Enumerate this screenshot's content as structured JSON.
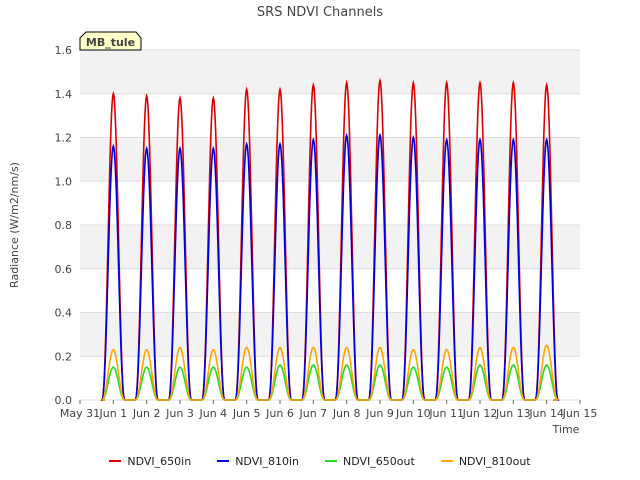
{
  "chart_data": {
    "type": "line",
    "title": "SRS NDVI Channels",
    "xlabel": "Time",
    "ylabel": "Radiance (W/m2/nm/s)",
    "ylim": [
      0.0,
      1.6
    ],
    "yticks": [
      "0.0",
      "0.2",
      "0.4",
      "0.6",
      "0.8",
      "1.0",
      "1.2",
      "1.4",
      "1.6"
    ],
    "xticks": [
      "May 31",
      "Jun 1",
      "Jun 2",
      "Jun 3",
      "Jun 4",
      "Jun 5",
      "Jun 6",
      "Jun 7",
      "Jun 8",
      "Jun 9",
      "Jun 10",
      "Jun 11",
      "Jun 12",
      "Jun 13",
      "Jun 14",
      "Jun 15"
    ],
    "grid": true,
    "legend_position": "bottom",
    "annotation": "MB_tule",
    "day_labels": [
      "Jun 1",
      "Jun 2",
      "Jun 3",
      "Jun 4",
      "Jun 5",
      "Jun 6",
      "Jun 7",
      "Jun 8",
      "Jun 9",
      "Jun 10",
      "Jun 11",
      "Jun 12",
      "Jun 13",
      "Jun 14"
    ],
    "series": [
      {
        "name": "NDVI_650in",
        "color": "#dd0000",
        "daily_peaks": [
          1.4,
          1.39,
          1.38,
          1.38,
          1.42,
          1.42,
          1.44,
          1.45,
          1.46,
          1.45,
          1.45,
          1.45,
          1.45,
          1.44
        ]
      },
      {
        "name": "NDVI_810in",
        "color": "#0000dd",
        "daily_peaks": [
          1.16,
          1.15,
          1.15,
          1.15,
          1.17,
          1.17,
          1.19,
          1.21,
          1.21,
          1.2,
          1.19,
          1.19,
          1.19,
          1.19
        ]
      },
      {
        "name": "NDVI_650out",
        "color": "#22dd22",
        "daily_peaks": [
          0.15,
          0.15,
          0.15,
          0.15,
          0.15,
          0.16,
          0.16,
          0.16,
          0.16,
          0.15,
          0.15,
          0.16,
          0.16,
          0.16
        ]
      },
      {
        "name": "NDVI_810out",
        "color": "#ffa500",
        "daily_peaks": [
          0.23,
          0.23,
          0.24,
          0.23,
          0.24,
          0.24,
          0.24,
          0.24,
          0.24,
          0.23,
          0.23,
          0.24,
          0.24,
          0.25
        ]
      }
    ]
  }
}
